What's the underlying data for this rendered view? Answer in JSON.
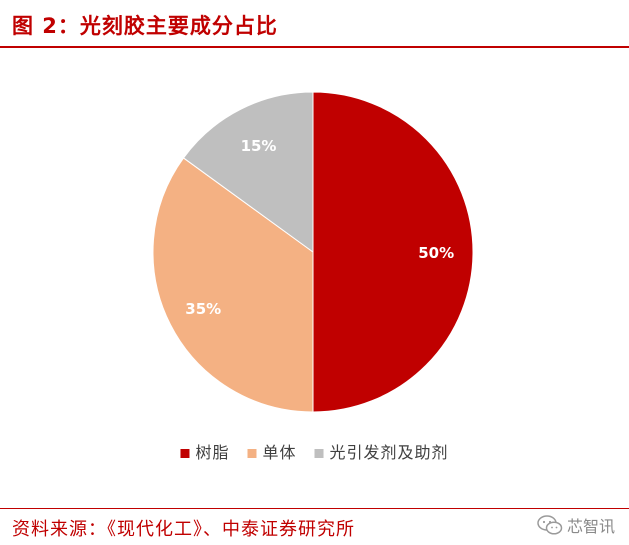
{
  "figure": {
    "title": "图 2：光刻胶主要成分占比",
    "source": "资料来源：《现代化工》、中泰证券研究所",
    "watermark": "芯智讯"
  },
  "colors": {
    "accent": "#c00000",
    "slices": [
      "#c00000",
      "#f4b183",
      "#bfbfbf"
    ]
  },
  "chart_data": {
    "type": "pie",
    "categories": [
      "树脂",
      "单体",
      "光引发剂及助剂"
    ],
    "values": [
      50,
      35,
      15
    ],
    "labels": [
      "50%",
      "35%",
      "15%"
    ],
    "legend_position": "bottom",
    "start": "12 o'clock",
    "direction": "clockwise"
  }
}
